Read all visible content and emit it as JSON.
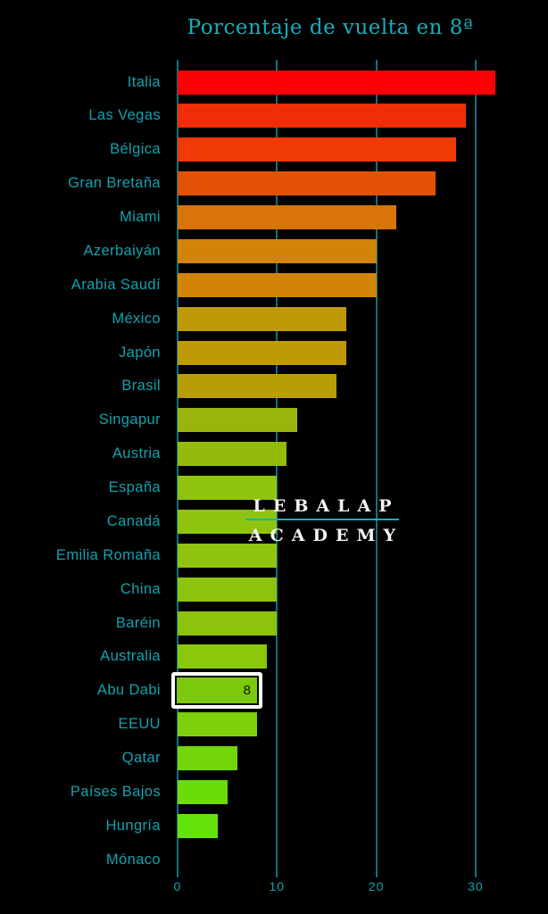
{
  "title": "Porcentaje de vuelta en 8ª",
  "watermark": {
    "line1": "LEBALAP",
    "line2": "ACADEMY"
  },
  "colors": {
    "background": "#000000",
    "label_teal": "#12a2ae",
    "title_teal": "#16aeba",
    "grid_teal": "#0d737d",
    "highlight_border": "#ffffff",
    "watermark_text": "#f4f4f4",
    "watermark_rule": "#12b2be"
  },
  "chart_data": {
    "type": "bar",
    "orientation": "horizontal",
    "title": "Porcentaje de vuelta en 8ª",
    "categories": [
      "Italia",
      "Las Vegas",
      "Bélgica",
      "Gran Bretaña",
      "Miami",
      "Azerbaiyán",
      "Arabia Saudí",
      "México",
      "Japón",
      "Brasil",
      "Singapur",
      "Austria",
      "España",
      "Canadá",
      "Emilia Romaña",
      "China",
      "Baréin",
      "Australia",
      "Abu Dabi",
      "EEUU",
      "Qatar",
      "Países Bajos",
      "Hungría",
      "Mónaco"
    ],
    "values": [
      32,
      29,
      28,
      26,
      22,
      20,
      20,
      17,
      17,
      16,
      12,
      11,
      10,
      10,
      10,
      10,
      10,
      9,
      8,
      8,
      6,
      5,
      4,
      0
    ],
    "bar_colors": [
      "#fb0106",
      "#ef2d07",
      "#ee3b06",
      "#e25106",
      "#d87408",
      "#d18407",
      "#d18407",
      "#bf9a07",
      "#bf9a07",
      "#b89d07",
      "#9bb40b",
      "#94bb0b",
      "#8ec40d",
      "#8ec40d",
      "#8ec40d",
      "#8dc30d",
      "#8dc30d",
      "#8ac80b",
      "#7cc90c",
      "#7ed00a",
      "#72d609",
      "#6cdc09",
      "#63e309",
      "#0d737d"
    ],
    "x_ticks": [
      0,
      10,
      20,
      30
    ],
    "xlim": [
      0,
      35
    ],
    "grid": true,
    "legend": false,
    "highlight": {
      "category": "Abu Dabi",
      "value_label": "8"
    }
  }
}
